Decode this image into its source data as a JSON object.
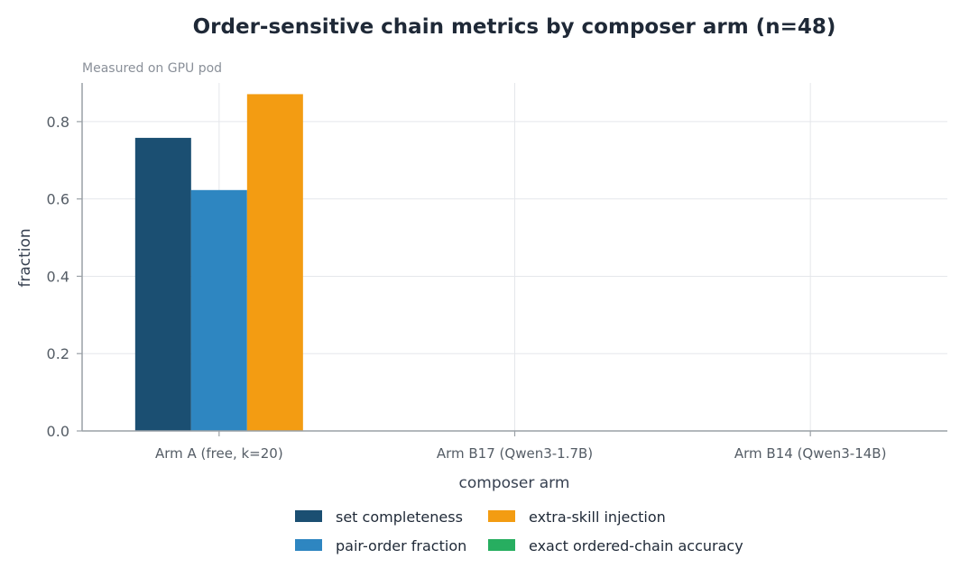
{
  "chart_data": {
    "type": "bar",
    "title": "Order-sensitive chain metrics by composer arm (n=48)",
    "subtitle": "Measured on GPU pod",
    "xlabel": "composer arm",
    "ylabel": "fraction",
    "categories": [
      "Arm A (free, k=20)",
      "Arm B17 (Qwen3-1.7B)",
      "Arm B14 (Qwen3-14B)"
    ],
    "series": [
      {
        "name": "set completeness",
        "color": "#1b4f72",
        "values": [
          0.758,
          0,
          0
        ]
      },
      {
        "name": "pair-order fraction",
        "color": "#2e86c1",
        "values": [
          0.623,
          0,
          0
        ]
      },
      {
        "name": "extra-skill injection",
        "color": "#f39c12",
        "values": [
          0.871,
          0,
          0
        ]
      },
      {
        "name": "exact ordered-chain accuracy",
        "color": "#27ae60",
        "values": [
          0,
          0,
          0
        ]
      }
    ],
    "ylim": [
      0,
      0.9
    ],
    "yticks": [
      0.0,
      0.2,
      0.4,
      0.6,
      0.8
    ],
    "ytick_labels": [
      "0.0",
      "0.2",
      "0.4",
      "0.6",
      "0.8"
    ],
    "grid": true,
    "legend_position": "bottom-center"
  }
}
